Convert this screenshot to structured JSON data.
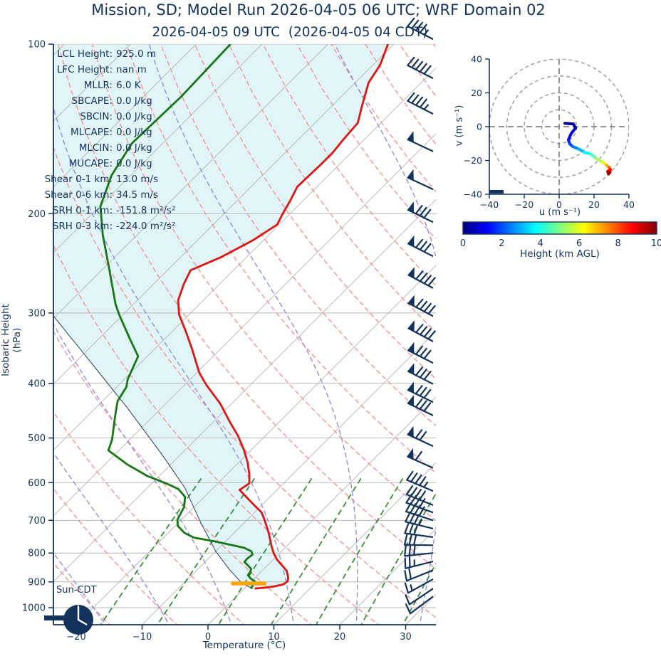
{
  "header": {
    "title": "Mission, SD; Model Run 2026-04-05 06 UTC; WRF Domain 02",
    "subtitle": "2026-04-05 09 UTC  (2026-04-05 04 CDT)"
  },
  "colors": {
    "text_navy": "#13335c",
    "temperature": "#e11414",
    "dewpoint": "#157815",
    "parcel": "#2a3f5f",
    "isotherm_gray": "#b3b3b3",
    "dry_adiabat": "#f58c8c",
    "moist_adiabat": "#8888e0",
    "mixing_ratio": "#2e8b2e",
    "cape_fill": "#e1f5f8",
    "lcl_orange": "#ffa500",
    "barb_navy": "#13335c",
    "ring_gray": "#999999"
  },
  "chart_data": [
    {
      "id": "skewt",
      "type": "line",
      "xlabel": "Temperature (°C)",
      "ylabel": "Isobaric Height (hPa)",
      "x_ticks": [
        -20,
        -10,
        0,
        10,
        20,
        30
      ],
      "y_ticks": [
        100,
        200,
        300,
        400,
        500,
        600,
        700,
        800,
        900,
        1000
      ],
      "y_scale": "log",
      "x_range_bottom": [
        -23,
        34.6
      ],
      "series": [
        {
          "name": "temperature",
          "color_key": "temperature",
          "points": [
            [
              100,
              -60.9
            ],
            [
              109,
              -58.9
            ],
            [
              117,
              -58.0
            ],
            [
              129,
              -55.4
            ],
            [
              138,
              -53.5
            ],
            [
              147,
              -53.2
            ],
            [
              156,
              -52.8
            ],
            [
              164,
              -52.8
            ],
            [
              172,
              -52.9
            ],
            [
              179,
              -53.0
            ],
            [
              189,
              -52.0
            ],
            [
              200,
              -51.1
            ],
            [
              209,
              -50.3
            ],
            [
              223,
              -51.6
            ],
            [
              239,
              -53.9
            ],
            [
              252,
              -56.5
            ],
            [
              267,
              -55.4
            ],
            [
              285,
              -53.8
            ],
            [
              302,
              -51.5
            ],
            [
              323,
              -48.0
            ],
            [
              347,
              -44.4
            ],
            [
              383,
              -39.6
            ],
            [
              403,
              -36.6
            ],
            [
              434,
              -31.8
            ],
            [
              469,
              -27.4
            ],
            [
              496,
              -24.1
            ],
            [
              526,
              -21.0
            ],
            [
              553,
              -18.6
            ],
            [
              581,
              -16.5
            ],
            [
              602,
              -15.2
            ],
            [
              618,
              -15.7
            ],
            [
              653,
              -11.7
            ],
            [
              678,
              -8.9
            ],
            [
              702,
              -7.1
            ],
            [
              739,
              -4.6
            ],
            [
              776,
              -2.4
            ],
            [
              799,
              -1.0
            ],
            [
              822,
              0.6
            ],
            [
              846,
              2.6
            ],
            [
              861,
              3.8
            ],
            [
              886,
              5.1
            ],
            [
              899,
              5.5
            ],
            [
              909,
              5.3
            ],
            [
              917,
              4.2
            ],
            [
              922,
              2.8
            ],
            [
              925,
              1.6
            ]
          ]
        },
        {
          "name": "dewpoint",
          "color_key": "dewpoint",
          "points": [
            [
              100,
              -84.8
            ],
            [
              124,
              -84.3
            ],
            [
              150,
              -84.7
            ],
            [
              171,
              -82.9
            ],
            [
              194,
              -79.9
            ],
            [
              218,
              -75.2
            ],
            [
              252,
              -68.8
            ],
            [
              289,
              -62.8
            ],
            [
              302,
              -60.6
            ],
            [
              334,
              -55.2
            ],
            [
              358,
              -51.4
            ],
            [
              393,
              -49.5
            ],
            [
              406,
              -48.5
            ],
            [
              430,
              -47.7
            ],
            [
              460,
              -45.6
            ],
            [
              503,
              -42.7
            ],
            [
              526,
              -41.6
            ],
            [
              557,
              -36.6
            ],
            [
              584,
              -31.8
            ],
            [
              602,
              -27.8
            ],
            [
              616,
              -25.1
            ],
            [
              636,
              -22.9
            ],
            [
              663,
              -21.5
            ],
            [
              698,
              -20.6
            ],
            [
              716,
              -19.6
            ],
            [
              737,
              -17.5
            ],
            [
              751,
              -15.4
            ],
            [
              762,
              -11.9
            ],
            [
              773,
              -8.9
            ],
            [
              783,
              -6.2
            ],
            [
              794,
              -4.6
            ],
            [
              805,
              -3.9
            ],
            [
              819,
              -4.1
            ],
            [
              830,
              -4.0
            ],
            [
              842,
              -2.9
            ],
            [
              854,
              -1.9
            ],
            [
              865,
              -1.6
            ],
            [
              875,
              -1.5
            ],
            [
              887,
              -0.6
            ],
            [
              899,
              0.6
            ],
            [
              925,
              1.0
            ]
          ]
        },
        {
          "name": "parcel",
          "color_key": "parcel",
          "points": [
            [
              304,
              -70.3
            ],
            [
              370,
              -57.1
            ],
            [
              444,
              -44.9
            ],
            [
              537,
              -32.6
            ],
            [
              613,
              -24.3
            ],
            [
              708,
              -16.5
            ],
            [
              794,
              -10.0
            ],
            [
              855,
              -5.2
            ],
            [
              906,
              -1.1
            ],
            [
              925,
              1.3
            ]
          ]
        }
      ],
      "lcl_marker": {
        "p": 906,
        "t_min": -2.5,
        "t_max": 2.3
      },
      "wind_barbs": [
        {
          "p": 98,
          "rot": 207,
          "flags": 0,
          "full": 4,
          "half": 1
        },
        {
          "p": 115,
          "rot": 207,
          "flags": 0,
          "full": 5,
          "half": 0
        },
        {
          "p": 133,
          "rot": 207,
          "flags": 0,
          "full": 4,
          "half": 1
        },
        {
          "p": 155,
          "rot": 205,
          "flags": 1,
          "full": 0,
          "half": 0
        },
        {
          "p": 181,
          "rot": 205,
          "flags": 1,
          "full": 0,
          "half": 0
        },
        {
          "p": 207,
          "rot": 206,
          "flags": 1,
          "full": 3,
          "half": 0
        },
        {
          "p": 238,
          "rot": 207,
          "flags": 1,
          "full": 3,
          "half": 0
        },
        {
          "p": 271,
          "rot": 208,
          "flags": 1,
          "full": 4,
          "half": 0
        },
        {
          "p": 304,
          "rot": 208,
          "flags": 1,
          "full": 4,
          "half": 0
        },
        {
          "p": 337,
          "rot": 208,
          "flags": 1,
          "full": 4,
          "half": 0
        },
        {
          "p": 368,
          "rot": 207,
          "flags": 1,
          "full": 3,
          "half": 0
        },
        {
          "p": 401,
          "rot": 207,
          "flags": 1,
          "full": 3,
          "half": 0
        },
        {
          "p": 432,
          "rot": 206,
          "flags": 1,
          "full": 3,
          "half": 0
        },
        {
          "p": 456,
          "rot": 206,
          "flags": 1,
          "full": 3,
          "half": 0
        },
        {
          "p": 517,
          "rot": 205,
          "flags": 1,
          "full": 2,
          "half": 0
        },
        {
          "p": 565,
          "rot": 204,
          "flags": 1,
          "full": 1,
          "half": 0
        },
        {
          "p": 621,
          "rot": 203,
          "flags": 0,
          "full": 4,
          "half": 1
        },
        {
          "p": 658,
          "rot": 202,
          "flags": 0,
          "full": 4,
          "half": 0
        },
        {
          "p": 678,
          "rot": 200,
          "flags": 0,
          "full": 4,
          "half": 0
        },
        {
          "p": 700,
          "rot": 198,
          "flags": 0,
          "full": 4,
          "half": 0
        },
        {
          "p": 724,
          "rot": 194,
          "flags": 0,
          "full": 3,
          "half": 1
        },
        {
          "p": 750,
          "rot": 188,
          "flags": 0,
          "full": 3,
          "half": 0
        },
        {
          "p": 775,
          "rot": 181,
          "flags": 0,
          "full": 3,
          "half": 0
        },
        {
          "p": 800,
          "rot": 174,
          "flags": 0,
          "full": 3,
          "half": 0
        },
        {
          "p": 828,
          "rot": 166,
          "flags": 0,
          "full": 2,
          "half": 1
        },
        {
          "p": 858,
          "rot": 158,
          "flags": 0,
          "full": 2,
          "half": 0
        },
        {
          "p": 890,
          "rot": 151,
          "flags": 0,
          "full": 1,
          "half": 1
        },
        {
          "p": 925,
          "rot": 146,
          "flags": 0,
          "full": 1,
          "half": 0
        },
        {
          "p": 955,
          "rot": 143,
          "flags": 0,
          "full": 1,
          "half": 0
        }
      ],
      "stats": [
        {
          "label": "LCL Height:",
          "value": "925.0 m"
        },
        {
          "label": "LFC Height:",
          "value": "nan m"
        },
        {
          "label": "MLLR:",
          "value": "6.0 K"
        },
        {
          "label": "SBCAPE:",
          "value": "0.0 J/kg"
        },
        {
          "label": "SBCIN:",
          "value": "0.0 J/kg"
        },
        {
          "label": "MLCAPE:",
          "value": "0.0 J/kg"
        },
        {
          "label": "MLCIN:",
          "value": "0.0 J/kg"
        },
        {
          "label": "MUCAPE:",
          "value": "0.0 J/kg"
        },
        {
          "label": "Shear 0-1 km:",
          "value": "13.0 m/s"
        },
        {
          "label": "Shear 0-6 km:",
          "value": "34.5 m/s"
        },
        {
          "label": "SRH 0-1 km:",
          "value": "-151.8 m²/s²"
        },
        {
          "label": "SRH 0-3 km:",
          "value": "-224.0 m²/s²"
        }
      ],
      "clock": {
        "label": "Sun-CDT",
        "time": "4:00"
      },
      "mixing_ratio_lines_gkg": [
        1,
        2,
        4,
        7,
        11,
        17,
        25
      ],
      "dry_adiabats_theta_c": {
        "min": -40,
        "max": 240,
        "step": 10
      },
      "moist_adiabats_t0_c": {
        "min": -60,
        "max": 40,
        "step": 10
      },
      "isotherms_c": {
        "min": -120,
        "max": 40,
        "step": 10
      }
    },
    {
      "id": "hodograph",
      "type": "line",
      "xlabel": "u (m s⁻¹)",
      "ylabel": "v (m s⁻¹)",
      "x_ticks": [
        -40,
        -20,
        0,
        20,
        40
      ],
      "y_ticks": [
        -40,
        -20,
        0,
        20,
        40
      ],
      "rings": [
        10,
        20,
        30,
        40
      ],
      "trace_uvh": [
        [
          3.3,
          2.0,
          0.1
        ],
        [
          8.2,
          1.6,
          0.3
        ],
        [
          9.4,
          -0.8,
          0.6
        ],
        [
          6.9,
          -4.1,
          0.9
        ],
        [
          5.3,
          -7.8,
          1.3
        ],
        [
          6.1,
          -10.2,
          1.7
        ],
        [
          7.8,
          -11.8,
          2.1
        ],
        [
          11.0,
          -13.1,
          2.7
        ],
        [
          14.3,
          -15.1,
          3.3
        ],
        [
          18.4,
          -16.3,
          4.1
        ],
        [
          21.6,
          -19.2,
          5.0
        ],
        [
          25.3,
          -21.2,
          6.0
        ],
        [
          27.3,
          -22.9,
          6.8
        ],
        [
          28.6,
          -24.1,
          7.5
        ],
        [
          29.4,
          -25.3,
          8.2
        ],
        [
          27.8,
          -26.5,
          9.0
        ],
        [
          28.3,
          -28.0,
          9.5
        ],
        [
          29.2,
          -26.8,
          10.0
        ]
      ],
      "colorbar": {
        "label": "Height (km AGL)",
        "ticks": [
          0,
          2,
          4,
          6,
          8,
          10
        ],
        "range": [
          0,
          10
        ]
      }
    }
  ]
}
